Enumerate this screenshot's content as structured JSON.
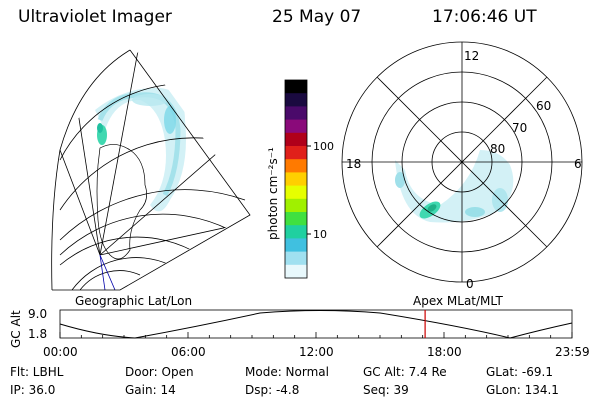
{
  "header": {
    "title": "Ultraviolet Imager",
    "date": "25 May 07",
    "time": "17:06:46 UT"
  },
  "colorbar": {
    "unit": "photon cm⁻²s⁻¹",
    "ticks": [
      "100",
      "10"
    ],
    "colors": [
      "#000000",
      "#1a0a40",
      "#4a0a6a",
      "#8a0a7a",
      "#b0001a",
      "#e0201a",
      "#ff7a00",
      "#ffcf00",
      "#e6ff00",
      "#a0f000",
      "#40e040",
      "#20d0a0",
      "#40c0e0",
      "#a0e0f0",
      "#e8f8fc"
    ]
  },
  "left_map": {
    "label": "Geographic Lat/Lon"
  },
  "right_map": {
    "label": "Apex MLat/MLT",
    "mlt_labels": [
      "12",
      "18",
      "6",
      "0"
    ],
    "lat_labels": [
      "60",
      "70",
      "80"
    ]
  },
  "timeline": {
    "ylabel": "GC Alt",
    "yticks": [
      "9.0",
      "1.8"
    ],
    "xticks": [
      "00:00",
      "06:00",
      "12:00",
      "18:00",
      "23:59"
    ],
    "current_fraction": 0.7131,
    "marker_color": "#cc0000"
  },
  "footer": {
    "flt": "Flt: LBHL",
    "ip": "IP: 36.0",
    "door": "Door: Open",
    "gain": "Gain: 14",
    "mode": "Mode: Normal",
    "dsp": "Dsp:   -4.8",
    "gcalt": "GC Alt: 7.4 Re",
    "seq": "Seq: 39",
    "glat": "GLat: -69.1",
    "glon": "GLon: 134.1"
  }
}
